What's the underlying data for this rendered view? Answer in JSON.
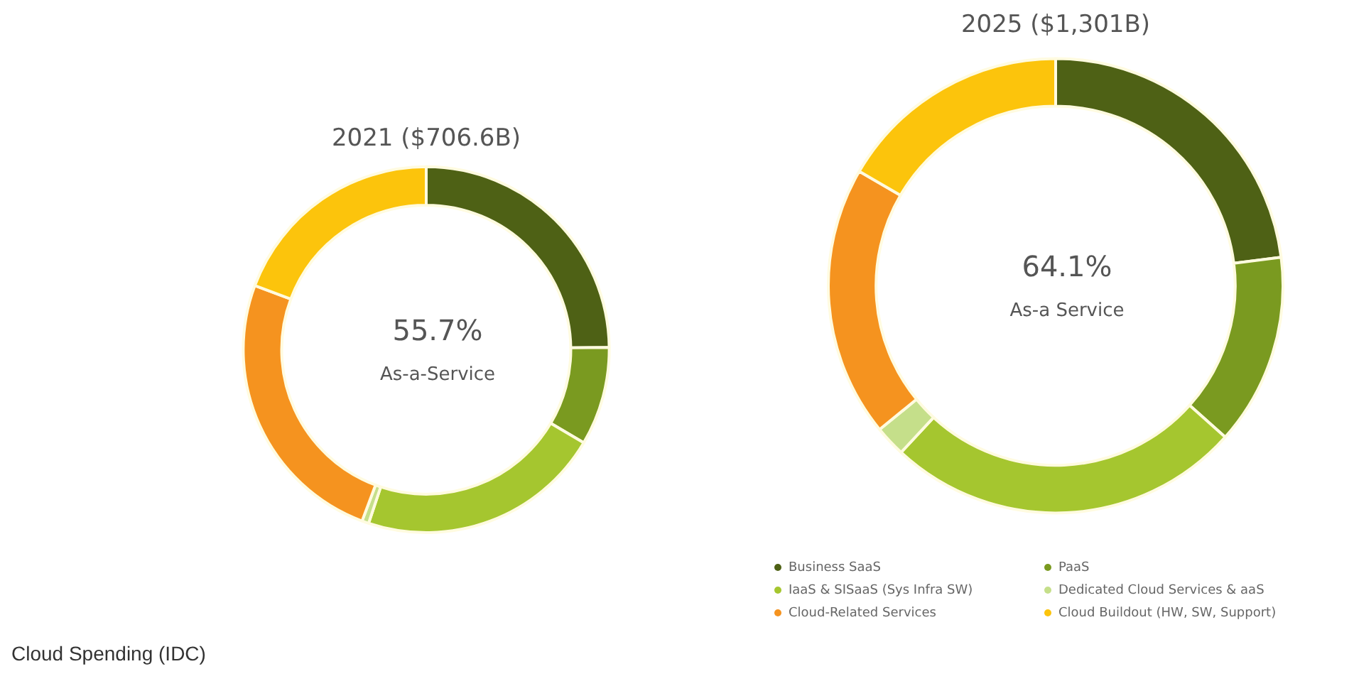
{
  "chart_data": [
    {
      "type": "donut",
      "title": "2021 ($706.6B)",
      "categories": [
        null,
        null,
        null,
        null,
        null,
        null
      ],
      "values": [
        24.8,
        8.7,
        21.6,
        0.6,
        25.0,
        19.3
      ],
      "colors": [
        "#4e6115",
        "#7a9a20",
        "#a5c62f",
        "#c5df8a",
        "#f5931f",
        "#fcc40c"
      ],
      "annotations": [
        "55.7%",
        "As-a-Service",
        "Cloud Spending (IDC)"
      ],
      "legend": false
    },
    {
      "type": "donut",
      "title": "2025 ($1,301B)",
      "categories": [
        "Business SaaS",
        "PaaS",
        "IaaS & SISaaS (Sys Infra SW)",
        "Dedicated Cloud Services & aaS",
        "Cloud-Related Services",
        "Cloud Buildout (HW, SW, Support)"
      ],
      "values": [
        23.0,
        13.6,
        25.3,
        2.2,
        19.3,
        16.6
      ],
      "colors": [
        "#4e6115",
        "#7a9a20",
        "#a5c62f",
        "#c5df8a",
        "#f5931f",
        "#fcc40c"
      ],
      "annotations": [
        "64.1%",
        "As-a Service"
      ],
      "legend": "bottom"
    }
  ]
}
